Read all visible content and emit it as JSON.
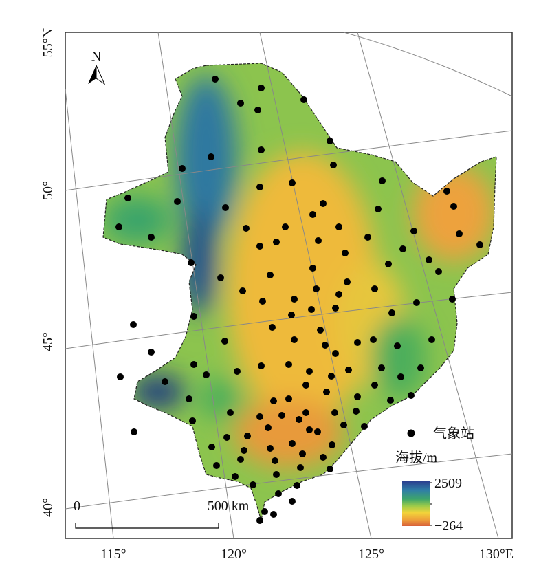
{
  "map": {
    "latitude_labels": [
      "55°N",
      "50°",
      "45°",
      "40°"
    ],
    "longitude_labels": [
      "115°",
      "120°",
      "125°",
      "130°E"
    ],
    "north_arrow": "N",
    "legend": {
      "station_label": "气象站",
      "elevation_title": "海拔/m",
      "max_label": "2509",
      "min_label": "−264"
    },
    "scale_bar": {
      "start_label": "0",
      "end_label": "500 km"
    }
  }
}
